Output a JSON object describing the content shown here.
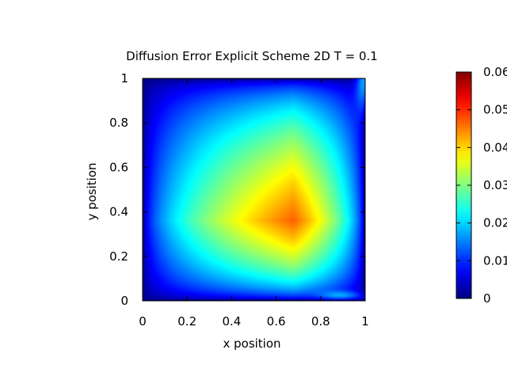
{
  "chart_data": {
    "type": "heatmap",
    "title": "Diffusion Error Explicit Scheme 2D T = 0.1",
    "xlabel": "x position",
    "ylabel": "y position",
    "xlim": [
      0,
      1
    ],
    "ylim": [
      0,
      1
    ],
    "x_ticks": [
      "0",
      "0.2",
      "0.4",
      "0.6",
      "0.8",
      "1"
    ],
    "y_ticks": [
      "0",
      "0.2",
      "0.4",
      "0.6",
      "0.8",
      "1"
    ],
    "colorbar": {
      "range": [
        0,
        0.06
      ],
      "ticks": [
        "0",
        "0.01",
        "0.02",
        "0.03",
        "0.04",
        "0.05",
        "0.06"
      ],
      "colormap": "jet"
    },
    "peak": {
      "x": 0.68,
      "y": 0.36,
      "value": 0.051
    },
    "grid": false,
    "colors": {
      "low": "#0000ff",
      "mid": "#00ff00",
      "high": "#ff0000",
      "max": "#400000"
    }
  }
}
